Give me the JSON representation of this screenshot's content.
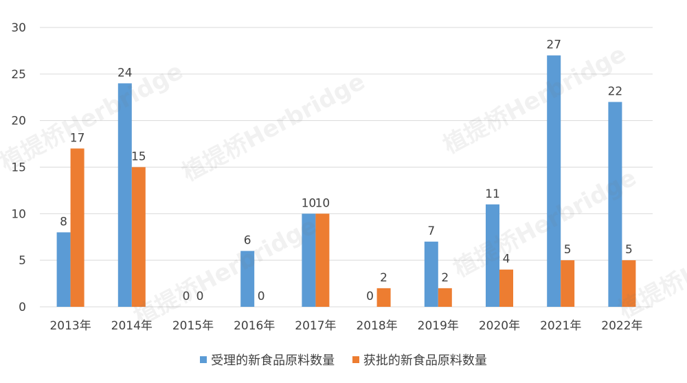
{
  "watermark": "植提桥Herbridge",
  "colors": {
    "series1": "#5B9BD5",
    "series2": "#ED7D31",
    "grid": "#D9D9D9",
    "text": "#404040"
  },
  "chart_data": {
    "type": "bar",
    "title": "",
    "xlabel": "",
    "ylabel": "",
    "ylim": [
      0,
      30
    ],
    "yticks": [
      0,
      5,
      10,
      15,
      20,
      25,
      30
    ],
    "grid": true,
    "legend_position": "bottom",
    "categories": [
      "2013年",
      "2014年",
      "2015年",
      "2016年",
      "2017年",
      "2018年",
      "2019年",
      "2020年",
      "2021年",
      "2022年"
    ],
    "series": [
      {
        "name": "受理的新食品原料数量",
        "values": [
          8,
          24,
          0,
          6,
          10,
          0,
          7,
          11,
          27,
          22
        ]
      },
      {
        "name": "获批的新食品原料数量",
        "values": [
          17,
          15,
          0,
          0,
          10,
          2,
          2,
          4,
          5,
          5
        ]
      }
    ]
  }
}
